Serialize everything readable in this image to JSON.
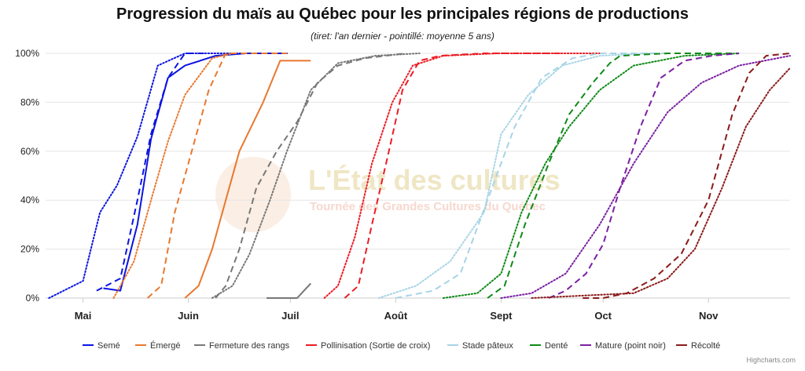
{
  "title": "Progression du maïs au Québec pour les principales régions de productions",
  "subtitle": "(tiret: l'an dernier - pointillé: moyenne 5 ans)",
  "credits": "Highcharts.com",
  "watermark": {
    "line1": "L'État des cultures",
    "line2": "Tournée des Grandes Cultures du Québec"
  },
  "chart_data": {
    "type": "line",
    "x_axis_type": "date",
    "x_categories": [
      "Mai",
      "Juin",
      "Juil",
      "Août",
      "Sept",
      "Oct",
      "Nov"
    ],
    "xlim": [
      "2024-04-20",
      "2024-11-25"
    ],
    "ylim": [
      0,
      100
    ],
    "y_ticks": [
      "0%",
      "20%",
      "40%",
      "60%",
      "80%",
      "100%"
    ],
    "grid": true,
    "legend_position": "bottom",
    "series": [
      {
        "name": "Semé",
        "color": "#0b14e0",
        "lines": [
          {
            "style": "solid",
            "points": [
              [
                "2024-05-07",
                4
              ],
              [
                "2024-05-12",
                3
              ],
              [
                "2024-05-17",
                30
              ],
              [
                "2024-05-21",
                65
              ],
              [
                "2024-05-26",
                90
              ],
              [
                "2024-05-31",
                95
              ],
              [
                "2024-06-09",
                99
              ],
              [
                "2024-06-18",
                100
              ],
              [
                "2024-06-30",
                100
              ]
            ]
          },
          {
            "style": "dashed",
            "points": [
              [
                "2024-05-05",
                3
              ],
              [
                "2024-05-12",
                8
              ],
              [
                "2024-05-17",
                40
              ],
              [
                "2024-05-21",
                67
              ],
              [
                "2024-05-26",
                90
              ],
              [
                "2024-05-31",
                100
              ],
              [
                "2024-06-07",
                100
              ]
            ]
          },
          {
            "style": "dotted",
            "points": [
              [
                "2024-04-21",
                0
              ],
              [
                "2024-05-01",
                7
              ],
              [
                "2024-05-06",
                35
              ],
              [
                "2024-05-11",
                46
              ],
              [
                "2024-05-17",
                66
              ],
              [
                "2024-05-23",
                95
              ],
              [
                "2024-05-31",
                100
              ],
              [
                "2024-06-30",
                100
              ]
            ]
          }
        ]
      },
      {
        "name": "Émergé",
        "color": "#e8782f",
        "lines": [
          {
            "style": "solid",
            "points": [
              [
                "2024-05-31",
                0
              ],
              [
                "2024-06-04",
                5
              ],
              [
                "2024-06-08",
                20
              ],
              [
                "2024-06-13",
                45
              ],
              [
                "2024-06-16",
                60
              ],
              [
                "2024-06-23",
                80
              ],
              [
                "2024-06-28",
                97
              ],
              [
                "2024-07-07",
                97
              ]
            ]
          },
          {
            "style": "dashed",
            "points": [
              [
                "2024-05-20",
                0
              ],
              [
                "2024-05-24",
                5
              ],
              [
                "2024-05-28",
                35
              ],
              [
                "2024-06-02",
                60
              ],
              [
                "2024-06-07",
                85
              ],
              [
                "2024-06-12",
                100
              ],
              [
                "2024-06-30",
                100
              ]
            ]
          },
          {
            "style": "dotted",
            "points": [
              [
                "2024-05-10",
                0
              ],
              [
                "2024-05-16",
                15
              ],
              [
                "2024-05-21",
                40
              ],
              [
                "2024-05-26",
                64
              ],
              [
                "2024-05-31",
                83
              ],
              [
                "2024-06-08",
                98
              ],
              [
                "2024-06-14",
                100
              ]
            ]
          }
        ]
      },
      {
        "name": "Fermeture des rangs",
        "color": "#777777",
        "lines": [
          {
            "style": "solid",
            "points": [
              [
                "2024-06-24",
                0
              ],
              [
                "2024-07-03",
                0
              ],
              [
                "2024-07-07",
                6
              ]
            ]
          },
          {
            "style": "dashed",
            "points": [
              [
                "2024-06-09",
                0
              ],
              [
                "2024-06-12",
                5
              ],
              [
                "2024-06-16",
                20
              ],
              [
                "2024-06-21",
                45
              ],
              [
                "2024-06-27",
                60
              ],
              [
                "2024-07-03",
                72
              ],
              [
                "2024-07-09",
                88
              ],
              [
                "2024-07-15",
                95
              ],
              [
                "2024-07-23",
                98
              ],
              [
                "2024-08-04",
                100
              ]
            ]
          },
          {
            "style": "dotted",
            "points": [
              [
                "2024-06-08",
                0
              ],
              [
                "2024-06-14",
                5
              ],
              [
                "2024-06-19",
                18
              ],
              [
                "2024-06-25",
                40
              ],
              [
                "2024-06-30",
                60
              ],
              [
                "2024-07-07",
                85
              ],
              [
                "2024-07-15",
                96
              ],
              [
                "2024-07-26",
                99
              ],
              [
                "2024-08-08",
                100
              ]
            ]
          }
        ]
      },
      {
        "name": "Pollinisation (Sortie de croix)",
        "color": "#ec1c24",
        "lines": [
          {
            "style": "dashed",
            "points": [
              [
                "2024-07-17",
                0
              ],
              [
                "2024-07-21",
                5
              ],
              [
                "2024-07-25",
                30
              ],
              [
                "2024-07-30",
                60
              ],
              [
                "2024-08-03",
                85
              ],
              [
                "2024-08-08",
                97
              ],
              [
                "2024-08-14",
                99
              ],
              [
                "2024-08-27",
                100
              ],
              [
                "2024-09-20",
                100
              ]
            ]
          },
          {
            "style": "dotted",
            "points": [
              [
                "2024-07-11",
                0
              ],
              [
                "2024-07-15",
                5
              ],
              [
                "2024-07-20",
                25
              ],
              [
                "2024-07-25",
                55
              ],
              [
                "2024-07-31",
                80
              ],
              [
                "2024-08-06",
                95
              ],
              [
                "2024-08-15",
                99
              ],
              [
                "2024-08-31",
                100
              ],
              [
                "2024-09-30",
                100
              ]
            ]
          }
        ]
      },
      {
        "name": "Stade pâteux",
        "color": "#a6d4e6",
        "lines": [
          {
            "style": "dashed",
            "points": [
              [
                "2024-08-01",
                0
              ],
              [
                "2024-08-12",
                3
              ],
              [
                "2024-08-20",
                10
              ],
              [
                "2024-08-28",
                40
              ],
              [
                "2024-09-05",
                70
              ],
              [
                "2024-09-13",
                90
              ],
              [
                "2024-09-22",
                98
              ],
              [
                "2024-09-30",
                100
              ],
              [
                "2024-10-20",
                100
              ]
            ]
          },
          {
            "style": "dotted",
            "points": [
              [
                "2024-07-27",
                0
              ],
              [
                "2024-08-07",
                5
              ],
              [
                "2024-08-17",
                15
              ],
              [
                "2024-08-27",
                35
              ],
              [
                "2024-09-01",
                67
              ],
              [
                "2024-09-09",
                83
              ],
              [
                "2024-09-19",
                95
              ],
              [
                "2024-09-30",
                99
              ],
              [
                "2024-10-15",
                100
              ]
            ]
          }
        ]
      },
      {
        "name": "Denté",
        "color": "#0e8a16",
        "lines": [
          {
            "style": "dashed",
            "points": [
              [
                "2024-08-28",
                0
              ],
              [
                "2024-09-02",
                5
              ],
              [
                "2024-09-08",
                30
              ],
              [
                "2024-09-15",
                55
              ],
              [
                "2024-09-21",
                75
              ],
              [
                "2024-09-28",
                88
              ],
              [
                "2024-10-03",
                96
              ],
              [
                "2024-10-06",
                99
              ],
              [
                "2024-10-20",
                100
              ],
              [
                "2024-11-10",
                100
              ]
            ]
          },
          {
            "style": "dotted",
            "points": [
              [
                "2024-08-15",
                0
              ],
              [
                "2024-08-25",
                2
              ],
              [
                "2024-09-01",
                10
              ],
              [
                "2024-09-07",
                35
              ],
              [
                "2024-09-14",
                55
              ],
              [
                "2024-09-21",
                70
              ],
              [
                "2024-09-30",
                85
              ],
              [
                "2024-10-10",
                95
              ],
              [
                "2024-10-25",
                99
              ],
              [
                "2024-11-10",
                100
              ]
            ]
          }
        ]
      },
      {
        "name": "Mature (point noir)",
        "color": "#7b1fa2",
        "lines": [
          {
            "style": "dashed",
            "points": [
              [
                "2024-09-15",
                0
              ],
              [
                "2024-09-20",
                3
              ],
              [
                "2024-09-26",
                10
              ],
              [
                "2024-10-01",
                22
              ],
              [
                "2024-10-06",
                45
              ],
              [
                "2024-10-12",
                70
              ],
              [
                "2024-10-18",
                90
              ],
              [
                "2024-10-25",
                97
              ],
              [
                "2024-11-02",
                99
              ],
              [
                "2024-11-10",
                100
              ]
            ]
          },
          {
            "style": "dotted",
            "points": [
              [
                "2024-09-01",
                0
              ],
              [
                "2024-09-10",
                2
              ],
              [
                "2024-09-20",
                10
              ],
              [
                "2024-09-30",
                30
              ],
              [
                "2024-10-10",
                55
              ],
              [
                "2024-10-20",
                76
              ],
              [
                "2024-10-30",
                88
              ],
              [
                "2024-11-10",
                95
              ],
              [
                "2024-11-25",
                99
              ]
            ]
          }
        ]
      },
      {
        "name": "Récolté",
        "color": "#8b1a1a",
        "lines": [
          {
            "style": "dashed",
            "points": [
              [
                "2024-09-25",
                0
              ],
              [
                "2024-10-01",
                0
              ],
              [
                "2024-10-08",
                2
              ],
              [
                "2024-10-16",
                8
              ],
              [
                "2024-10-24",
                18
              ],
              [
                "2024-11-01",
                40
              ],
              [
                "2024-11-08",
                75
              ],
              [
                "2024-11-13",
                92
              ],
              [
                "2024-11-18",
                99
              ],
              [
                "2024-11-25",
                100
              ]
            ]
          },
          {
            "style": "dotted",
            "points": [
              [
                "2024-09-10",
                0
              ],
              [
                "2024-09-25",
                1
              ],
              [
                "2024-10-10",
                2
              ],
              [
                "2024-10-20",
                8
              ],
              [
                "2024-10-28",
                20
              ],
              [
                "2024-11-05",
                45
              ],
              [
                "2024-11-12",
                70
              ],
              [
                "2024-11-19",
                85
              ],
              [
                "2024-11-25",
                94
              ]
            ]
          }
        ]
      }
    ]
  }
}
